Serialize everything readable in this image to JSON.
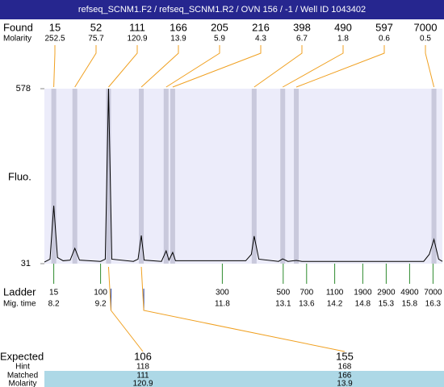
{
  "title": "refseq_SCNM1.F2 / refseq_SCNM1.R2 / OVN 156 / -1 / Well ID 1043402",
  "found": {
    "label": "Found",
    "molarity_label": "Molarity"
  },
  "chart_data": {
    "type": "line",
    "ylabel": "Fluo.",
    "color": "#000000",
    "ylim": [
      31,
      578
    ],
    "yticks": [
      31,
      578
    ],
    "xlim": [
      8.0,
      16.5
    ],
    "x": [
      8.0,
      8.12,
      8.2,
      8.28,
      8.4,
      8.55,
      8.65,
      8.75,
      9.2,
      9.3,
      9.37,
      9.44,
      9.9,
      10.0,
      10.07,
      10.13,
      10.5,
      10.6,
      10.66,
      10.74,
      10.8,
      12.3,
      12.42,
      12.48,
      12.58,
      13.0,
      13.09,
      13.2,
      13.38,
      13.5,
      16.1,
      16.22,
      16.32,
      16.42,
      16.5
    ],
    "values": [
      36,
      45,
      212,
      50,
      40,
      42,
      79,
      42,
      38,
      45,
      578,
      45,
      38,
      45,
      119,
      42,
      38,
      71,
      42,
      66,
      40,
      40,
      60,
      117,
      45,
      38,
      46,
      38,
      41,
      38,
      38,
      60,
      107,
      45,
      38
    ],
    "peak_sizes": [
      15,
      52,
      111,
      166,
      205,
      216,
      398,
      490,
      597,
      7000
    ],
    "peak_molarity": [
      252.5,
      75.7,
      120.9,
      13.9,
      5.9,
      4.3,
      6.7,
      1.8,
      0.6,
      0.5
    ],
    "peak_times": [
      8.2,
      8.65,
      9.37,
      10.07,
      10.6,
      10.74,
      12.48,
      13.09,
      13.38,
      16.32
    ]
  },
  "ladder": {
    "label": "Ladder",
    "time_label": "Mig. time",
    "sizes": [
      15,
      100,
      300,
      500,
      700,
      1100,
      1900,
      2900,
      4900,
      7000
    ],
    "times": [
      8.2,
      9.2,
      11.8,
      13.1,
      13.6,
      14.2,
      14.8,
      15.3,
      15.8,
      16.3
    ]
  },
  "expected": {
    "label": "Expected",
    "hint_label": "Hint",
    "matched_label": "Matched",
    "molarity_label": "Molarity",
    "values": [
      106,
      155
    ],
    "hint": [
      118,
      168
    ],
    "matched": [
      111,
      166
    ],
    "molarity": [
      120.9,
      13.9
    ]
  }
}
